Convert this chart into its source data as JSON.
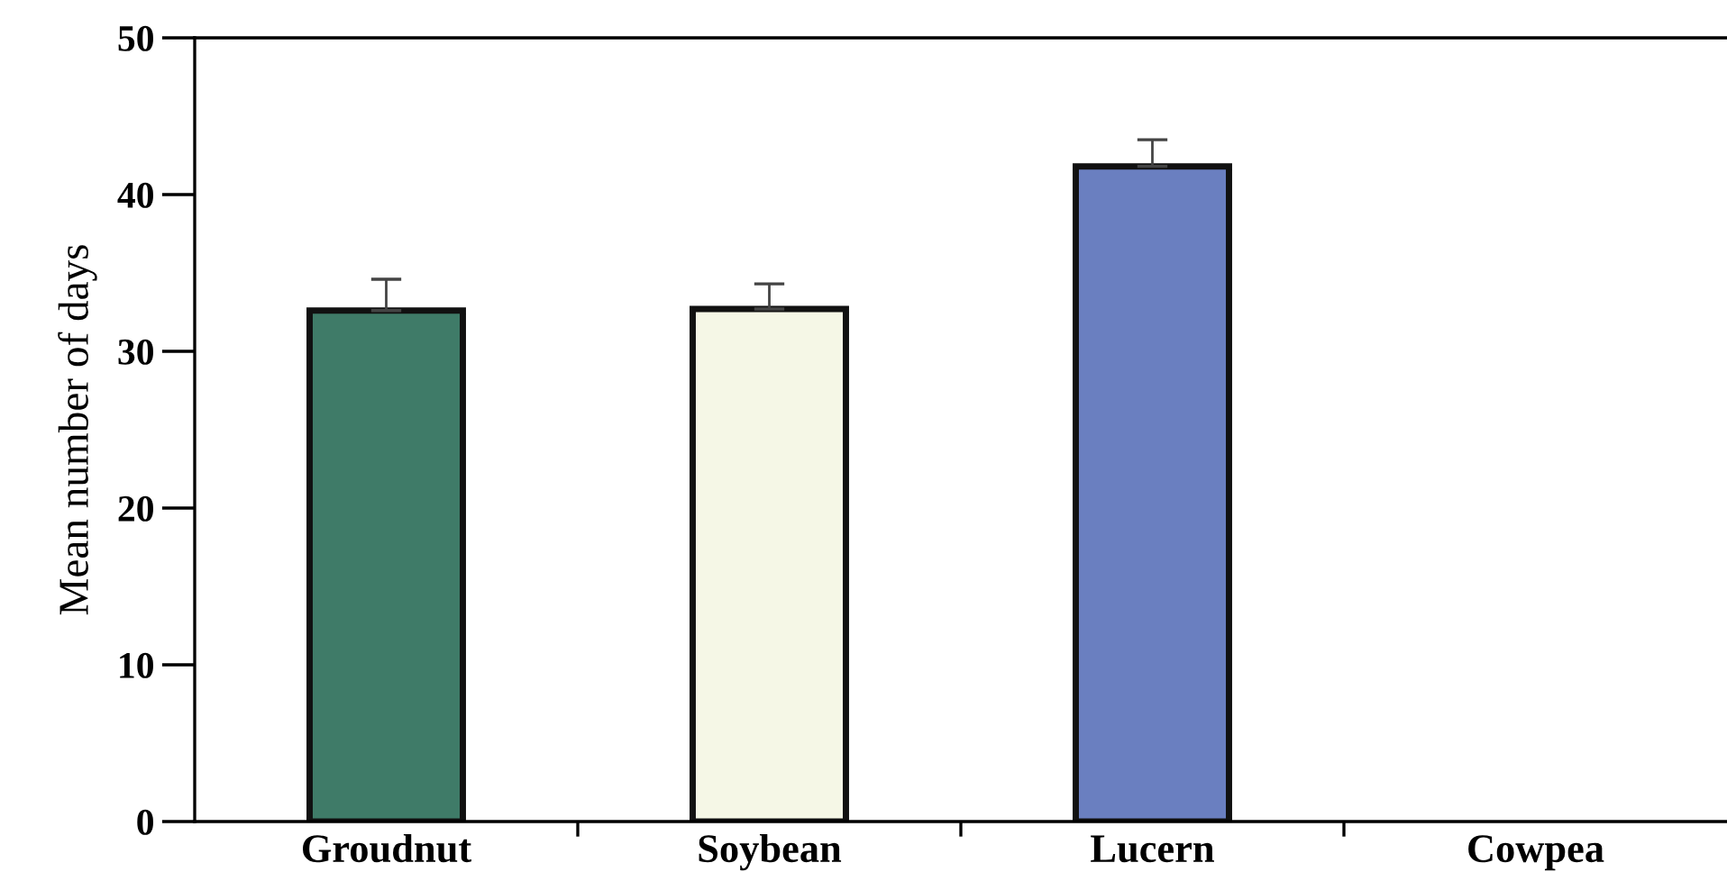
{
  "chart_data": {
    "type": "bar",
    "ylabel": "Mean number of days",
    "categories": [
      "Groudnut",
      "Soybean",
      "Lucern",
      "Cowpea"
    ],
    "values": [
      32.6,
      32.7,
      41.8,
      null
    ],
    "errors": [
      [
        32.6,
        34.6
      ],
      [
        32.7,
        34.3
      ],
      [
        41.8,
        43.5
      ],
      null
    ],
    "colors": [
      "#3f7b68",
      "#f5f7e6",
      "#6a7fc0",
      "#ffffff"
    ],
    "ylim": [
      0,
      50
    ],
    "yticks": [
      0,
      10,
      20,
      30,
      40,
      50
    ]
  }
}
